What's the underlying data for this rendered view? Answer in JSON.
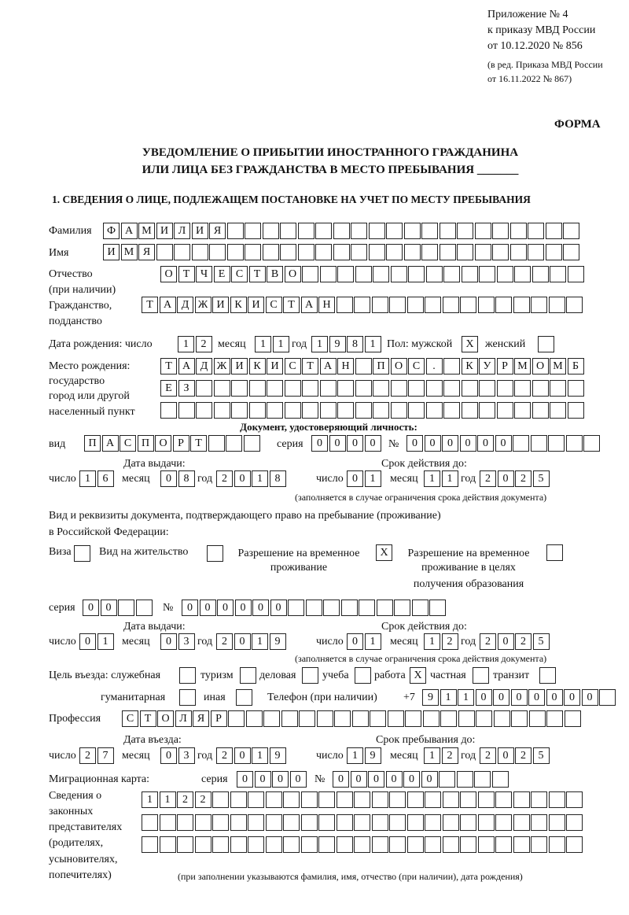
{
  "header": {
    "line1": "Приложение № 4",
    "line2": "к приказу МВД России",
    "line3": "от 10.12.2020 № 856",
    "line4": "(в ред. Приказа МВД России",
    "line5": "от 16.11.2022 № 867)",
    "form": "ФОРМА",
    "title1": "УВЕДОМЛЕНИЕ О ПРИБЫТИИ ИНОСТРАННОГО ГРАЖДАНИНА",
    "title2": "ИЛИ ЛИЦА БЕЗ ГРАЖДАНСТВА В МЕСТО ПРЕБЫВАНИЯ _______",
    "section1": "1. СВЕДЕНИЯ О ЛИЦЕ, ПОДЛЕЖАЩЕМ ПОСТАНОВКЕ НА УЧЕТ ПО МЕСТУ ПРЕБЫВАНИЯ"
  },
  "labels": {
    "surname": "Фамилия",
    "name": "Имя",
    "patronymic1": "Отчество",
    "patronymic2": "(при наличии)",
    "citizenship1": "Гражданство,",
    "citizenship2": "подданство",
    "birth_date": "Дата рождения:  число",
    "month": "месяц",
    "year": "год",
    "day": "число",
    "sex": "Пол: мужской",
    "female": "женский",
    "birthplace1": "Место рождения:",
    "birthplace2": "государство",
    "birthplace3": "город или другой",
    "birthplace4": "населенный пункт",
    "id_doc": "Документ, удостоверяющий личность:",
    "kind": "вид",
    "series": "серия",
    "number": "№",
    "issue_date": "Дата выдачи:",
    "valid_until": "Срок действия до:",
    "validity_note": "(заполняется в случае ограничения срока действия документа)",
    "stay_doc1": "Вид и реквизиты документа, подтверждающего право на пребывание (проживание)",
    "stay_doc2": "в Российской Федерации:",
    "visa": "Виза",
    "residence": "Вид на жительство",
    "temp_permit1": "Разрешение на временное",
    "temp_permit2": "проживание",
    "edu_permit1": "Разрешение на временное",
    "edu_permit2": "проживание в целях",
    "edu_permit3": "получения образования",
    "purpose": "Цель въезда: служебная",
    "tourism": "туризм",
    "business": "деловая",
    "study": "учеба",
    "work": "работа",
    "private": "частная",
    "transit": "транзит",
    "humanitarian": "гуманитарная",
    "other": "иная",
    "phone": "Телефон (при наличии)",
    "phone_prefix": "+7",
    "profession": "Профессия",
    "entry_date": "Дата въезда:",
    "stay_until": "Срок пребывания до:",
    "migration_card": "Миграционная карта:",
    "reps1": "Сведения о",
    "reps2": "законных",
    "reps3": "представителях",
    "reps4": "(родителях,",
    "reps5": "усыновителях,",
    "reps6": "попечителях)",
    "reps_note": "(при заполнении указываются фамилия, имя, отчество (при наличии), дата рождения)"
  },
  "fields": {
    "surname": "ФАМИЛИЯ",
    "name": "ИМЯ",
    "patronymic": "ОТЧЕСТВО",
    "citizenship": "ТАДЖИКИСТАН",
    "birth_day": "12",
    "birth_month": "11",
    "birth_year": "1981",
    "sex_male": "X",
    "sex_female": "",
    "birthplace_row1": "ТАДЖИКИСТАН ПОС. КУРМОМБ",
    "birthplace_row2": "ЕЗ",
    "birthplace_row3": "",
    "id_kind": "ПАСПОРТ",
    "id_series": "0000",
    "id_number": "000000",
    "id_issue_day": "16",
    "id_issue_month": "08",
    "id_issue_year": "2018",
    "id_valid_day": "01",
    "id_valid_month": "11",
    "id_valid_year": "2025",
    "visa": "",
    "residence_permit": "",
    "temp_permit": "X",
    "edu_permit": "",
    "stay_series": "00",
    "stay_number": "000000",
    "stay_issue_day": "01",
    "stay_issue_month": "03",
    "stay_issue_year": "2019",
    "stay_valid_day": "01",
    "stay_valid_month": "12",
    "stay_valid_year": "2025",
    "purpose_official": "",
    "purpose_tourism": "",
    "purpose_business": "",
    "purpose_study": "",
    "purpose_work": "X",
    "purpose_private": "",
    "purpose_transit": "",
    "purpose_humanitarian": "",
    "purpose_other": "",
    "phone": "9110000000",
    "profession": "СТОЛЯР",
    "entry_day": "27",
    "entry_month": "03",
    "entry_year": "2019",
    "stay_until_day": "19",
    "stay_until_month": "12",
    "stay_until_year": "2025",
    "mc_series": "0000",
    "mc_number": "000000",
    "reps_row1": "1122",
    "reps_row2": "",
    "reps_row3": ""
  }
}
